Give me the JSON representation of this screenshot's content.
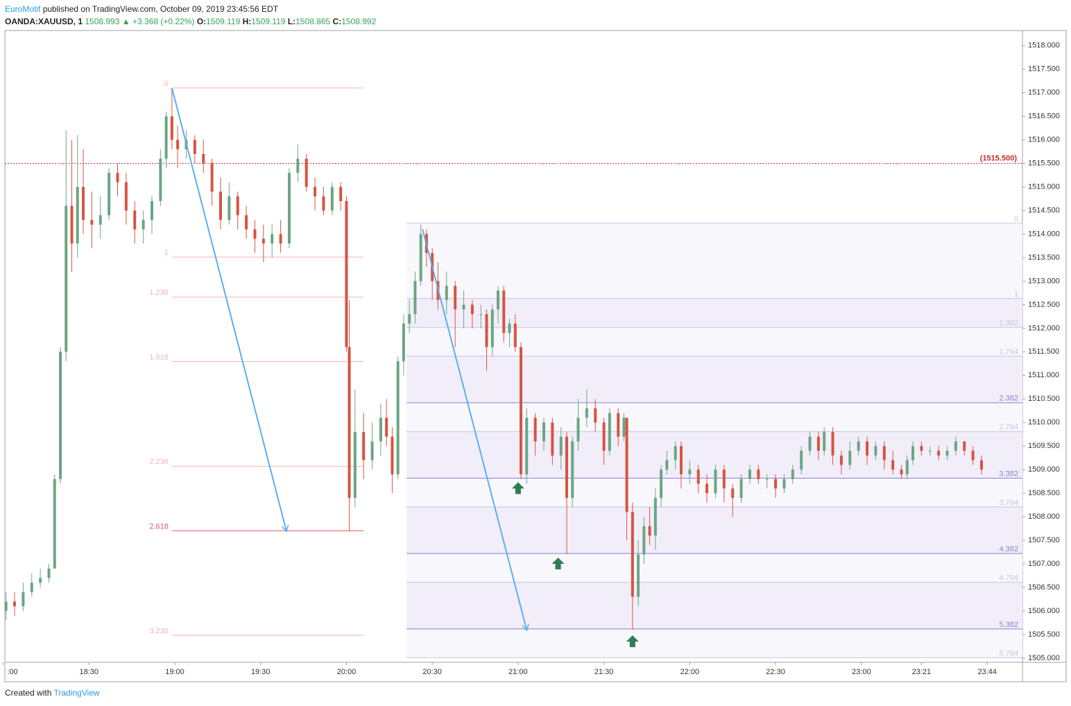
{
  "header": {
    "author": "EuroMotif",
    "published": "published on TradingView.com, October 09, 2019 23:45:56 EDT"
  },
  "footer": {
    "created": "Created with",
    "brand": "TradingView"
  },
  "chart_data": {
    "type": "candlestick",
    "legend": {
      "symbol": "OANDA:XAUUSD, 1",
      "last": 1508.993,
      "change_icon": "▲",
      "change": "+3.368 (+0.22%)",
      "o_label": "O:",
      "o": 1509.119,
      "h_label": "H:",
      "h": 1509.119,
      "l_label": "L:",
      "l": 1508.865,
      "c_label": "C:",
      "c": 1508.992
    },
    "up_color": "#6ba583",
    "down_color": "#d75442",
    "x": [
      1,
      4,
      7,
      10,
      13,
      16,
      18,
      20,
      22,
      24,
      26,
      28,
      31,
      34,
      37,
      40,
      43,
      46,
      49,
      52,
      55,
      57,
      59,
      61,
      64,
      67,
      70,
      73,
      76,
      79,
      82,
      85,
      88,
      91,
      94,
      97,
      100,
      103,
      106,
      109,
      112,
      115,
      118,
      120,
      121,
      123,
      126,
      129,
      132,
      134,
      136,
      138,
      140,
      142,
      144,
      146,
      148,
      150,
      152,
      155,
      158,
      161,
      164,
      167,
      169,
      171,
      173,
      175,
      177,
      179,
      181,
      183,
      186,
      189,
      192,
      195,
      197,
      199,
      201,
      204,
      207,
      210,
      212,
      215,
      217,
      218,
      220,
      222,
      224,
      226,
      228,
      230,
      232,
      235,
      237,
      240,
      243,
      246,
      249,
      252,
      255,
      258,
      261,
      264,
      267,
      270,
      273,
      276,
      279,
      282,
      285,
      287,
      290,
      293,
      296,
      299,
      302,
      305,
      308,
      311,
      314,
      316,
      318,
      321,
      324,
      327,
      330,
      333,
      336,
      339,
      342
    ],
    "open": [
      1506.0,
      1506.2,
      1506.1,
      1506.4,
      1506.6,
      1506.7,
      1506.9,
      1508.8,
      1511.5,
      1514.6,
      1513.8,
      1515.0,
      1514.3,
      1514.2,
      1514.4,
      1515.3,
      1515.1,
      1514.5,
      1514.1,
      1514.3,
      1514.7,
      1515.6,
      1516.5,
      1516.0,
      1515.8,
      1516.0,
      1515.7,
      1515.5,
      1514.9,
      1514.3,
      1514.8,
      1514.4,
      1514.1,
      1513.9,
      1513.8,
      1514.0,
      1513.8,
      1515.3,
      1515.6,
      1515.0,
      1514.8,
      1514.5,
      1515.0,
      1514.7,
      1511.6,
      1508.4,
      1509.8,
      1509.2,
      1509.6,
      1510.1,
      1509.7,
      1508.9,
      1511.3,
      1512.1,
      1512.3,
      1513.0,
      1514.0,
      1513.6,
      1513.0,
      1512.6,
      1512.9,
      1512.4,
      1512.5,
      1512.3,
      1512.3,
      1511.6,
      1512.4,
      1512.8,
      1511.9,
      1512.1,
      1511.6,
      1508.9,
      1510.1,
      1509.6,
      1510.0,
      1509.3,
      1509.7,
      1508.4,
      1509.6,
      1510.1,
      1510.3,
      1510.0,
      1509.4,
      1510.2,
      1509.7,
      1510.1,
      1508.1,
      1506.3,
      1507.2,
      1507.8,
      1507.6,
      1508.4,
      1509.0,
      1509.2,
      1509.5,
      1508.9,
      1509.0,
      1508.7,
      1508.5,
      1509.0,
      1508.6,
      1508.4,
      1508.8,
      1509.0,
      1508.8,
      1508.8,
      1508.6,
      1508.8,
      1509.0,
      1509.4,
      1509.7,
      1509.4,
      1509.8,
      1509.3,
      1509.1,
      1509.4,
      1509.6,
      1509.3,
      1509.5,
      1509.2,
      1509.0,
      1508.9,
      1509.2,
      1509.5,
      1509.4,
      1509.4,
      1509.3,
      1509.4,
      1509.6,
      1509.4,
      1509.2
    ],
    "high": [
      1506.4,
      1506.4,
      1506.6,
      1506.8,
      1506.9,
      1507.0,
      1508.9,
      1511.6,
      1516.2,
      1516.0,
      1516.1,
      1515.8,
      1514.9,
      1514.8,
      1515.4,
      1515.5,
      1515.3,
      1514.7,
      1514.5,
      1514.8,
      1515.8,
      1516.6,
      1517.1,
      1516.3,
      1516.2,
      1516.1,
      1516.0,
      1515.6,
      1515.2,
      1515.1,
      1514.9,
      1514.6,
      1514.3,
      1514.2,
      1514.2,
      1514.3,
      1515.4,
      1515.9,
      1515.7,
      1515.2,
      1515.0,
      1515.1,
      1515.1,
      1514.8,
      1512.6,
      1510.7,
      1510.2,
      1510.0,
      1510.4,
      1510.5,
      1509.9,
      1511.4,
      1512.3,
      1512.6,
      1513.2,
      1514.2,
      1514.1,
      1513.7,
      1513.4,
      1513.2,
      1513.0,
      1512.8,
      1512.6,
      1512.5,
      1512.4,
      1512.5,
      1512.9,
      1512.9,
      1512.2,
      1512.3,
      1511.7,
      1510.3,
      1510.2,
      1510.1,
      1510.1,
      1509.9,
      1509.8,
      1509.7,
      1510.5,
      1510.7,
      1510.5,
      1510.1,
      1510.3,
      1510.3,
      1510.2,
      1510.1,
      1508.3,
      1507.5,
      1508.0,
      1508.2,
      1508.6,
      1509.1,
      1509.4,
      1509.6,
      1509.6,
      1509.2,
      1509.1,
      1508.9,
      1509.1,
      1509.1,
      1508.7,
      1508.9,
      1509.1,
      1509.1,
      1508.9,
      1508.9,
      1508.9,
      1509.1,
      1509.5,
      1509.8,
      1509.8,
      1509.9,
      1509.9,
      1509.4,
      1509.6,
      1509.7,
      1509.7,
      1509.6,
      1509.6,
      1509.4,
      1509.1,
      1509.3,
      1509.6,
      1509.6,
      1509.5,
      1509.5,
      1509.5,
      1509.7,
      1509.6,
      1509.5,
      1509.3
    ],
    "low": [
      1505.8,
      1505.9,
      1506.0,
      1506.3,
      1506.5,
      1506.6,
      1506.9,
      1508.7,
      1511.3,
      1513.2,
      1513.5,
      1514.0,
      1513.7,
      1513.9,
      1514.3,
      1514.8,
      1514.2,
      1513.8,
      1513.8,
      1514.0,
      1514.6,
      1515.4,
      1515.8,
      1515.4,
      1515.6,
      1515.5,
      1515.3,
      1514.6,
      1514.1,
      1514.2,
      1514.1,
      1513.9,
      1513.6,
      1513.4,
      1513.5,
      1513.6,
      1513.7,
      1515.1,
      1514.9,
      1514.5,
      1514.4,
      1514.4,
      1514.5,
      1511.5,
      1507.7,
      1508.2,
      1508.8,
      1509.0,
      1509.3,
      1509.5,
      1508.5,
      1508.8,
      1511.0,
      1511.9,
      1512.1,
      1512.9,
      1513.3,
      1512.6,
      1512.4,
      1512.3,
      1511.6,
      1512.0,
      1512.0,
      1512.0,
      1511.1,
      1511.4,
      1512.1,
      1511.7,
      1511.6,
      1511.5,
      1508.8,
      1508.7,
      1509.3,
      1509.4,
      1509.1,
      1509.0,
      1507.2,
      1508.2,
      1509.4,
      1509.9,
      1509.8,
      1509.1,
      1509.3,
      1509.5,
      1509.6,
      1507.5,
      1505.6,
      1506.1,
      1507.0,
      1507.4,
      1507.3,
      1508.2,
      1508.9,
      1509.0,
      1508.6,
      1508.7,
      1508.5,
      1508.3,
      1508.4,
      1508.3,
      1508.0,
      1508.3,
      1508.7,
      1508.7,
      1508.6,
      1508.4,
      1508.5,
      1508.7,
      1508.9,
      1509.3,
      1509.2,
      1509.3,
      1509.1,
      1508.9,
      1509.0,
      1509.3,
      1509.1,
      1509.2,
      1509.0,
      1508.9,
      1508.8,
      1508.8,
      1509.1,
      1509.3,
      1509.3,
      1509.2,
      1509.2,
      1509.3,
      1509.3,
      1509.1,
      1508.9
    ],
    "close": [
      1506.2,
      1506.1,
      1506.4,
      1506.6,
      1506.7,
      1506.9,
      1508.8,
      1511.5,
      1514.6,
      1513.8,
      1515.0,
      1514.3,
      1514.2,
      1514.4,
      1515.3,
      1515.1,
      1514.5,
      1514.1,
      1514.3,
      1514.7,
      1515.6,
      1516.5,
      1516.0,
      1515.8,
      1516.0,
      1515.7,
      1515.5,
      1514.9,
      1514.3,
      1514.8,
      1514.4,
      1514.1,
      1513.9,
      1513.8,
      1514.0,
      1513.8,
      1515.3,
      1515.6,
      1515.0,
      1514.8,
      1514.5,
      1515.0,
      1514.7,
      1511.6,
      1508.4,
      1509.8,
      1509.2,
      1509.6,
      1510.1,
      1509.7,
      1508.9,
      1511.3,
      1512.1,
      1512.3,
      1513.0,
      1514.0,
      1513.6,
      1513.0,
      1512.6,
      1512.9,
      1512.4,
      1512.5,
      1512.3,
      1512.3,
      1511.6,
      1512.4,
      1512.8,
      1511.9,
      1512.1,
      1511.6,
      1508.9,
      1510.1,
      1509.6,
      1510.0,
      1509.3,
      1509.7,
      1508.4,
      1509.6,
      1510.1,
      1510.3,
      1510.0,
      1509.4,
      1510.2,
      1509.7,
      1510.1,
      1508.1,
      1506.3,
      1507.2,
      1507.8,
      1507.6,
      1508.4,
      1509.0,
      1509.2,
      1509.5,
      1508.9,
      1509.0,
      1508.7,
      1508.5,
      1509.0,
      1508.6,
      1508.4,
      1508.8,
      1509.0,
      1508.8,
      1508.8,
      1508.6,
      1508.8,
      1509.0,
      1509.4,
      1509.7,
      1509.4,
      1509.8,
      1509.3,
      1509.1,
      1509.4,
      1509.6,
      1509.3,
      1509.5,
      1509.2,
      1509.0,
      1508.9,
      1509.2,
      1509.5,
      1509.4,
      1509.4,
      1509.3,
      1509.4,
      1509.6,
      1509.4,
      1509.2,
      1509.0
    ],
    "xlim": [
      0.6,
      356.3
    ],
    "ylim": [
      1504.91,
      1518.32
    ],
    "xticks": [
      {
        "value": 0,
        "label": ":00"
      },
      {
        "value": 30,
        "label": "18:30"
      },
      {
        "value": 60,
        "label": "19:00"
      },
      {
        "value": 90,
        "label": "19:30"
      },
      {
        "value": 120,
        "label": "20:00"
      },
      {
        "value": 150,
        "label": "20:30"
      },
      {
        "value": 180,
        "label": "21:00"
      },
      {
        "value": 210,
        "label": "21:30"
      },
      {
        "value": 240,
        "label": "22:00"
      },
      {
        "value": 270,
        "label": "22:30"
      },
      {
        "value": 300,
        "label": "23:00"
      },
      {
        "value": 321,
        "label": "23:21"
      },
      {
        "value": 344,
        "label": "23:44"
      }
    ],
    "yticks": [
      {
        "value": 1505,
        "label": "1505.000"
      },
      {
        "value": 1505.5,
        "label": "1505.500"
      },
      {
        "value": 1506,
        "label": "1506.000"
      },
      {
        "value": 1506.5,
        "label": "1506.500"
      },
      {
        "value": 1507,
        "label": "1507.000"
      },
      {
        "value": 1507.5,
        "label": "1507.500"
      },
      {
        "value": 1508,
        "label": "1508.000"
      },
      {
        "value": 1508.5,
        "label": "1508.500"
      },
      {
        "value": 1509,
        "label": "1509.000"
      },
      {
        "value": 1509.5,
        "label": "1509.500"
      },
      {
        "value": 1510,
        "label": "1510.000"
      },
      {
        "value": 1510.5,
        "label": "1510.500"
      },
      {
        "value": 1511,
        "label": "1511.000"
      },
      {
        "value": 1511.5,
        "label": "1511.500"
      },
      {
        "value": 1512,
        "label": "1512.000"
      },
      {
        "value": 1512.5,
        "label": "1512.500"
      },
      {
        "value": 1513,
        "label": "1513.000"
      },
      {
        "value": 1513.5,
        "label": "1513.500"
      },
      {
        "value": 1514,
        "label": "1514.000"
      },
      {
        "value": 1514.5,
        "label": "1514.500"
      },
      {
        "value": 1515,
        "label": "1515.000"
      },
      {
        "value": 1515.5,
        "label": "1515.500"
      },
      {
        "value": 1516,
        "label": "1516.000"
      },
      {
        "value": 1516.5,
        "label": "1516.500"
      },
      {
        "value": 1517,
        "label": "1517.000"
      },
      {
        "value": 1517.5,
        "label": "1517.500"
      },
      {
        "value": 1518,
        "label": "1518.000"
      }
    ],
    "price_line": {
      "value": 1515.5,
      "label": "(1515.500)",
      "color": "#c62828"
    },
    "fib_retracements": [
      {
        "start": 1517.1,
        "end": 1513.51,
        "x_range": [
          59,
          126
        ],
        "levels": [
          0,
          1,
          1.236,
          1.618,
          2.236,
          2.618,
          3.236
        ],
        "emphasized_levels": [
          2.618
        ],
        "color": "#f4b4b4",
        "emphasis_color": "#e05a5a",
        "label_side": "left",
        "bands": false
      },
      {
        "start": 1514.23,
        "end": 1512.63,
        "x_range": [
          141,
          356.3
        ],
        "levels": [
          0,
          1,
          1.382,
          1.764,
          2.382,
          2.764,
          3.382,
          3.764,
          4.382,
          4.764,
          5.382,
          5.764
        ],
        "emphasized_levels": [
          2.382,
          3.382,
          4.382,
          5.382
        ],
        "color": "#c9c3e6",
        "emphasis_color": "#8e80cc",
        "label_side": "right",
        "bands": true
      }
    ],
    "trend_arrows": {
      "color": "#5aaef0",
      "x": [
        [
          59,
          99
        ],
        [
          146.6,
          183
        ]
      ],
      "y": [
        [
          1517.1,
          1507.7
        ],
        [
          1514.1,
          1505.6
        ]
      ]
    },
    "up_markers": {
      "color": "#2f7d52",
      "x": [
        180,
        194,
        220
      ],
      "y": [
        1508.6,
        1507.0,
        1505.35
      ]
    }
  }
}
